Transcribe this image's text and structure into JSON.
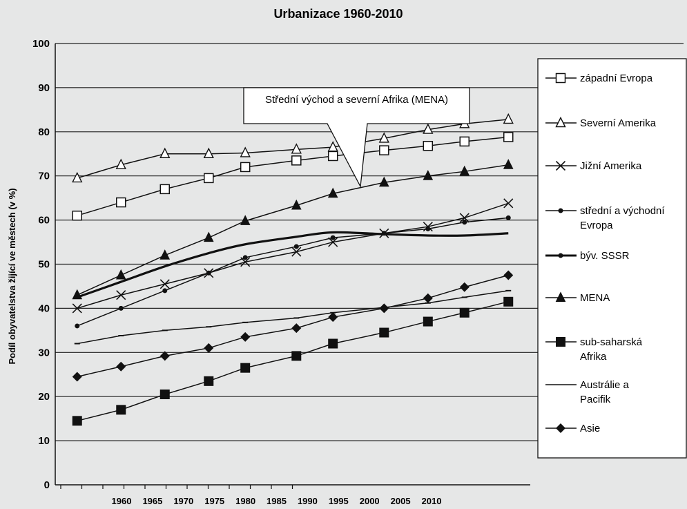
{
  "chart_data": {
    "type": "line",
    "title": "Urbanizace 1960-2010",
    "ylabel": "Podíl obyvatelstva žijící ve městech (v %)",
    "xlabel": "",
    "ylim": [
      0,
      100
    ],
    "yticks": [
      0,
      10,
      20,
      30,
      40,
      50,
      60,
      70,
      80,
      90,
      100
    ],
    "xticks": [
      "1960",
      "1965",
      "1970",
      "1975",
      "1980",
      "1985",
      "1990",
      "1995",
      "2000",
      "2005",
      "2010"
    ],
    "grid": "horizontal",
    "legend": "right",
    "annotation": "Střední východ a severní Afrika (MENA)",
    "series": [
      {
        "name": "západní Evropa",
        "marker": "square-open",
        "smooth": false,
        "x": [
          1960,
          1966,
          1972,
          1978,
          1983,
          1990,
          1995,
          2002,
          2008,
          2013,
          2019
        ],
        "y": [
          61,
          64,
          67,
          69.5,
          72,
          73.5,
          74.5,
          75.8,
          76.8,
          77.8,
          78.8
        ]
      },
      {
        "name": "Severní Amerika",
        "marker": "triangle-open",
        "smooth": false,
        "x": [
          1960,
          1966,
          1972,
          1978,
          1983,
          1990,
          1995,
          2002,
          2008,
          2013,
          2019
        ],
        "y": [
          69.5,
          72.5,
          75,
          75,
          75.2,
          76,
          76.5,
          78.5,
          80.5,
          81.8,
          82.8
        ]
      },
      {
        "name": "Jižní Amerika",
        "marker": "x",
        "smooth": false,
        "x": [
          1960,
          1966,
          1972,
          1978,
          1983,
          1990,
          1995,
          2002,
          2008,
          2013,
          2019
        ],
        "y": [
          40,
          43,
          45.5,
          48,
          50.5,
          52.8,
          55,
          57,
          58.5,
          60.5,
          63.8
        ]
      },
      {
        "name": "střední a východní Evropa",
        "marker": "dot",
        "smooth": false,
        "x": [
          1960,
          1966,
          1972,
          1978,
          1983,
          1990,
          1995,
          2002,
          2008,
          2013,
          2019
        ],
        "y": [
          36,
          40,
          44,
          48,
          51.5,
          54,
          56,
          57,
          58,
          59.5,
          60.5
        ]
      },
      {
        "name": "býv. SSSR",
        "marker": "dot",
        "smooth": true,
        "x": [
          1960,
          1966,
          1972,
          1978,
          1983,
          1990,
          1995,
          2002,
          2008,
          2013,
          2019
        ],
        "y": [
          42.5,
          46,
          49.5,
          52.5,
          54.5,
          56.2,
          57.2,
          56.8,
          56.5,
          56.5,
          57
        ]
      },
      {
        "name": "MENA",
        "marker": "triangle-filled",
        "smooth": false,
        "x": [
          1960,
          1966,
          1972,
          1978,
          1983,
          1990,
          1995,
          2002,
          2008,
          2013,
          2019
        ],
        "y": [
          43,
          47.5,
          52,
          56,
          59.8,
          63.3,
          66,
          68.5,
          70,
          71,
          72.5
        ]
      },
      {
        "name": "sub-saharská Afrika",
        "marker": "square-filled",
        "smooth": false,
        "x": [
          1960,
          1966,
          1972,
          1978,
          1983,
          1990,
          1995,
          2002,
          2008,
          2013,
          2019
        ],
        "y": [
          14.5,
          17,
          20.5,
          23.5,
          26.5,
          29.2,
          32,
          34.5,
          37,
          39,
          41.5
        ]
      },
      {
        "name": "Austrálie a Pacifik",
        "marker": "dash",
        "smooth": false,
        "x": [
          1960,
          1966,
          1972,
          1978,
          1983,
          1990,
          1995,
          2002,
          2008,
          2013,
          2019
        ],
        "y": [
          32,
          33.8,
          35,
          35.8,
          36.8,
          37.8,
          39,
          40.2,
          41.2,
          42.5,
          44
        ]
      },
      {
        "name": "Asie",
        "marker": "diamond-filled",
        "smooth": false,
        "x": [
          1960,
          1966,
          1972,
          1978,
          1983,
          1990,
          1995,
          2002,
          2008,
          2013,
          2019
        ],
        "y": [
          24.5,
          26.8,
          29.2,
          31,
          33.5,
          35.5,
          38,
          40,
          42.3,
          44.8,
          47.5
        ]
      }
    ]
  }
}
